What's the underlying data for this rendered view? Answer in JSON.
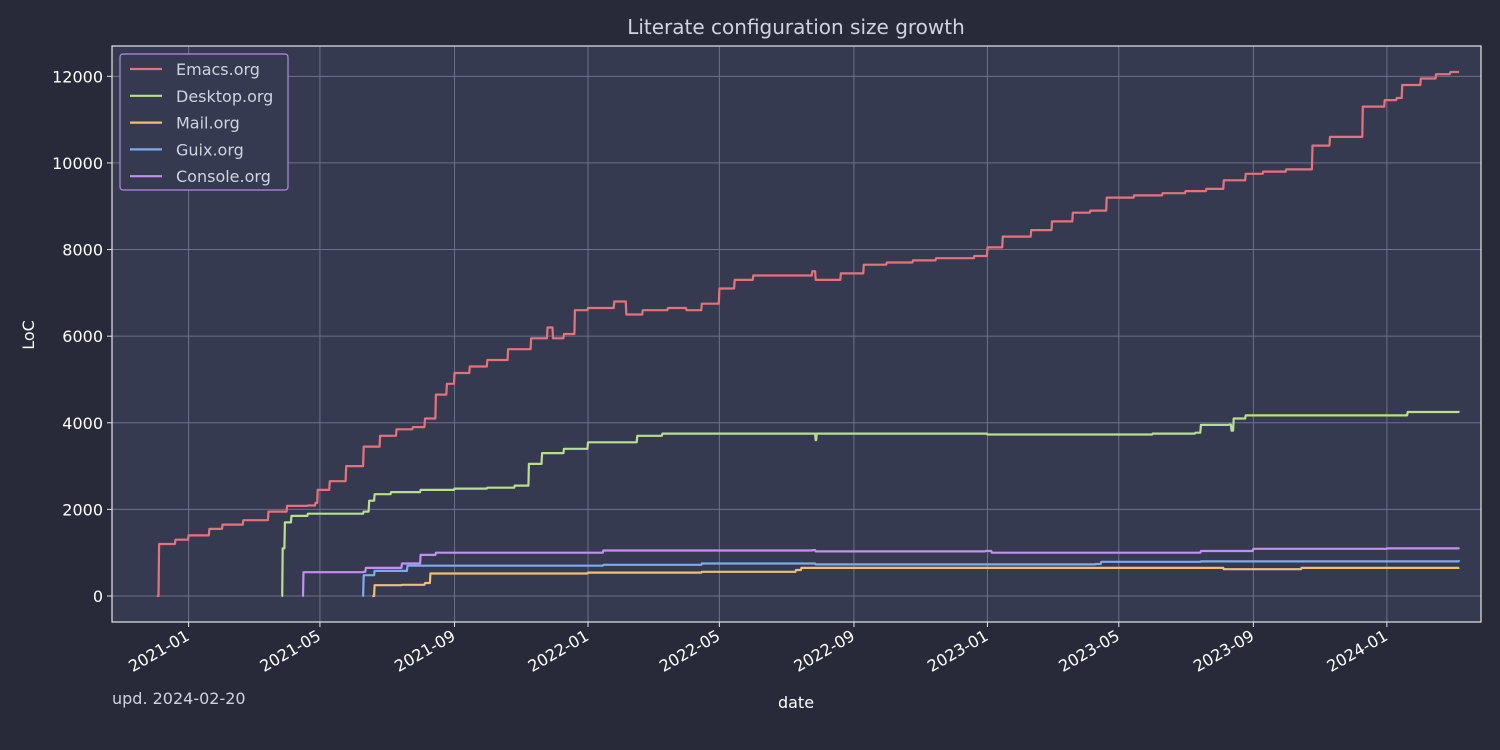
{
  "chart_data": {
    "type": "line",
    "title": "Literate configuration size growth",
    "xlabel": "date",
    "ylabel": "LoC",
    "xlim": [
      "2020-10-23",
      "2024-03-27"
    ],
    "ylim": [
      -600,
      12700
    ],
    "x_ticks": [
      "2021-01",
      "2021-05",
      "2021-09",
      "2022-01",
      "2022-05",
      "2022-09",
      "2023-01",
      "2023-05",
      "2023-09",
      "2024-01"
    ],
    "y_ticks": [
      0,
      2000,
      4000,
      6000,
      8000,
      10000,
      12000
    ],
    "grid": true,
    "legend_position": "top-left",
    "annotation": "upd. 2024-02-20",
    "colors": {
      "background": "#282a3a",
      "plot_background": "#363a50",
      "grid": "#6c7088",
      "axes": "#e6e6e6",
      "legend_border": "#b48ee0"
    },
    "series": [
      {
        "name": "Emacs.org",
        "color": "#e8727c",
        "points": [
          [
            "2020-12-03",
            0
          ],
          [
            "2020-12-05",
            1200
          ],
          [
            "2020-12-20",
            1300
          ],
          [
            "2021-01-01",
            1400
          ],
          [
            "2021-01-20",
            1550
          ],
          [
            "2021-02-01",
            1650
          ],
          [
            "2021-02-20",
            1750
          ],
          [
            "2021-03-15",
            1950
          ],
          [
            "2021-04-01",
            2080
          ],
          [
            "2021-04-20",
            2090
          ],
          [
            "2021-04-27",
            2150
          ],
          [
            "2021-04-29",
            2450
          ],
          [
            "2021-05-10",
            2650
          ],
          [
            "2021-05-25",
            3000
          ],
          [
            "2021-06-10",
            3450
          ],
          [
            "2021-06-25",
            3700
          ],
          [
            "2021-07-10",
            3850
          ],
          [
            "2021-07-25",
            3900
          ],
          [
            "2021-08-05",
            4100
          ],
          [
            "2021-08-15",
            4650
          ],
          [
            "2021-08-25",
            4900
          ],
          [
            "2021-09-01",
            5150
          ],
          [
            "2021-09-15",
            5300
          ],
          [
            "2021-10-01",
            5450
          ],
          [
            "2021-10-20",
            5700
          ],
          [
            "2021-11-10",
            5950
          ],
          [
            "2021-11-25",
            6200
          ],
          [
            "2021-11-30",
            5950
          ],
          [
            "2021-12-10",
            6050
          ],
          [
            "2021-12-20",
            6600
          ],
          [
            "2022-01-01",
            6650
          ],
          [
            "2022-01-25",
            6800
          ],
          [
            "2022-02-05",
            6500
          ],
          [
            "2022-02-20",
            6600
          ],
          [
            "2022-03-15",
            6650
          ],
          [
            "2022-04-01",
            6600
          ],
          [
            "2022-04-15",
            6750
          ],
          [
            "2022-05-01",
            7100
          ],
          [
            "2022-05-15",
            7300
          ],
          [
            "2022-06-01",
            7400
          ],
          [
            "2022-07-01",
            7400
          ],
          [
            "2022-07-25",
            7500
          ],
          [
            "2022-07-28",
            7300
          ],
          [
            "2022-08-20",
            7450
          ],
          [
            "2022-09-10",
            7650
          ],
          [
            "2022-10-01",
            7700
          ],
          [
            "2022-10-25",
            7750
          ],
          [
            "2022-11-15",
            7800
          ],
          [
            "2022-12-20",
            7850
          ],
          [
            "2023-01-01",
            8050
          ],
          [
            "2023-01-15",
            8300
          ],
          [
            "2023-02-10",
            8450
          ],
          [
            "2023-03-01",
            8650
          ],
          [
            "2023-03-20",
            8850
          ],
          [
            "2023-04-05",
            8900
          ],
          [
            "2023-04-20",
            9200
          ],
          [
            "2023-05-15",
            9250
          ],
          [
            "2023-06-10",
            9300
          ],
          [
            "2023-07-01",
            9350
          ],
          [
            "2023-07-20",
            9400
          ],
          [
            "2023-08-05",
            9600
          ],
          [
            "2023-08-25",
            9750
          ],
          [
            "2023-09-10",
            9800
          ],
          [
            "2023-10-01",
            9850
          ],
          [
            "2023-10-15",
            9850
          ],
          [
            "2023-10-25",
            10400
          ],
          [
            "2023-11-10",
            10600
          ],
          [
            "2023-12-10",
            11300
          ],
          [
            "2023-12-30",
            11450
          ],
          [
            "2024-01-10",
            11500
          ],
          [
            "2024-01-15",
            11800
          ],
          [
            "2024-02-01",
            11950
          ],
          [
            "2024-02-15",
            12050
          ],
          [
            "2024-02-28",
            12100
          ],
          [
            "2024-03-07",
            12100
          ]
        ]
      },
      {
        "name": "Desktop.org",
        "color": "#b8e08c",
        "points": [
          [
            "2021-03-27",
            0
          ],
          [
            "2021-03-28",
            1100
          ],
          [
            "2021-03-30",
            1700
          ],
          [
            "2021-04-05",
            1850
          ],
          [
            "2021-04-20",
            1900
          ],
          [
            "2021-06-10",
            1950
          ],
          [
            "2021-06-15",
            2200
          ],
          [
            "2021-06-20",
            2350
          ],
          [
            "2021-07-05",
            2400
          ],
          [
            "2021-08-01",
            2450
          ],
          [
            "2021-09-01",
            2480
          ],
          [
            "2021-10-01",
            2500
          ],
          [
            "2021-10-26",
            2550
          ],
          [
            "2021-11-08",
            3050
          ],
          [
            "2021-11-20",
            3300
          ],
          [
            "2021-12-10",
            3400
          ],
          [
            "2022-01-01",
            3550
          ],
          [
            "2022-02-15",
            3700
          ],
          [
            "2022-03-10",
            3750
          ],
          [
            "2022-05-01",
            3750
          ],
          [
            "2022-07-27",
            3750
          ],
          [
            "2022-07-28",
            3600
          ],
          [
            "2022-07-29",
            3750
          ],
          [
            "2022-11-01",
            3750
          ],
          [
            "2023-01-01",
            3730
          ],
          [
            "2023-06-01",
            3750
          ],
          [
            "2023-07-10",
            3770
          ],
          [
            "2023-07-15",
            3950
          ],
          [
            "2023-08-10",
            3960
          ],
          [
            "2023-08-12",
            3820
          ],
          [
            "2023-08-14",
            4100
          ],
          [
            "2023-08-25",
            4170
          ],
          [
            "2024-01-05",
            4170
          ],
          [
            "2024-01-20",
            4250
          ],
          [
            "2024-03-07",
            4270
          ]
        ]
      },
      {
        "name": "Mail.org",
        "color": "#f0c070",
        "points": [
          [
            "2021-06-18",
            0
          ],
          [
            "2021-06-20",
            250
          ],
          [
            "2021-07-15",
            260
          ],
          [
            "2021-08-05",
            300
          ],
          [
            "2021-08-10",
            520
          ],
          [
            "2022-01-01",
            540
          ],
          [
            "2022-04-15",
            560
          ],
          [
            "2022-07-10",
            600
          ],
          [
            "2022-07-15",
            650
          ],
          [
            "2022-10-01",
            650
          ],
          [
            "2023-07-30",
            650
          ],
          [
            "2023-08-05",
            620
          ],
          [
            "2023-10-15",
            650
          ],
          [
            "2024-03-07",
            660
          ]
        ]
      },
      {
        "name": "Guix.org",
        "color": "#7eaaf0",
        "points": [
          [
            "2021-06-09",
            0
          ],
          [
            "2021-06-10",
            480
          ],
          [
            "2021-06-20",
            580
          ],
          [
            "2021-07-20",
            700
          ],
          [
            "2022-01-15",
            720
          ],
          [
            "2022-04-15",
            750
          ],
          [
            "2022-07-28",
            730
          ],
          [
            "2023-04-10",
            740
          ],
          [
            "2023-04-15",
            790
          ],
          [
            "2023-07-15",
            800
          ],
          [
            "2024-03-07",
            830
          ]
        ]
      },
      {
        "name": "Console.org",
        "color": "#c290ee",
        "points": [
          [
            "2021-04-15",
            0
          ],
          [
            "2021-04-16",
            550
          ],
          [
            "2021-06-10",
            560
          ],
          [
            "2021-06-12",
            650
          ],
          [
            "2021-07-15",
            750
          ],
          [
            "2021-08-01",
            950
          ],
          [
            "2021-08-15",
            1000
          ],
          [
            "2022-01-15",
            1050
          ],
          [
            "2022-07-25",
            1060
          ],
          [
            "2022-07-28",
            1030
          ],
          [
            "2022-12-30",
            1040
          ],
          [
            "2023-01-05",
            1000
          ],
          [
            "2023-07-15",
            1040
          ],
          [
            "2023-09-01",
            1090
          ],
          [
            "2024-01-01",
            1100
          ],
          [
            "2024-03-07",
            1120
          ]
        ]
      }
    ]
  }
}
